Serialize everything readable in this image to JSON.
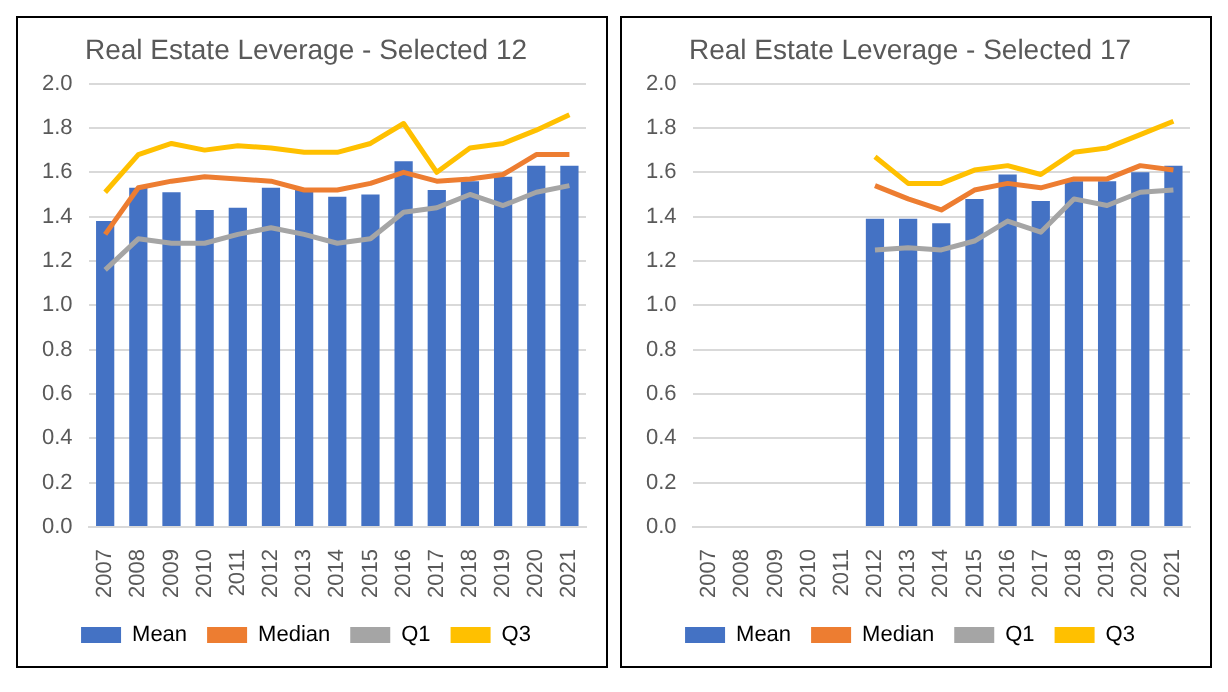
{
  "chart_data": [
    {
      "type": "bar",
      "title": "Real Estate Leverage - Selected 12",
      "categories": [
        "2007",
        "2008",
        "2009",
        "2010",
        "2011",
        "2012",
        "2013",
        "2014",
        "2015",
        "2016",
        "2017",
        "2018",
        "2019",
        "2020",
        "2021"
      ],
      "ylim": [
        0,
        2
      ],
      "yticks": [
        {
          "value": 0,
          "label": "0.0"
        },
        {
          "value": 0.2,
          "label": "0.2"
        },
        {
          "value": 0.4,
          "label": "0.4"
        },
        {
          "value": 0.6,
          "label": "0.6"
        },
        {
          "value": 0.8,
          "label": "0.8"
        },
        {
          "value": 1,
          "label": "1.0"
        },
        {
          "value": 1.2,
          "label": "1.2"
        },
        {
          "value": 1.4,
          "label": "1.4"
        },
        {
          "value": 1.6,
          "label": "1.6"
        },
        {
          "value": 1.8,
          "label": "1.8"
        },
        {
          "value": 2,
          "label": "2.0"
        }
      ],
      "grid": "y",
      "legend": "bottom",
      "series": [
        {
          "name": "Mean",
          "color": "#4472c4",
          "values": [
            1.38,
            1.53,
            1.51,
            1.43,
            1.44,
            1.53,
            1.52,
            1.49,
            1.5,
            1.65,
            1.52,
            1.56,
            1.58,
            1.63,
            1.63
          ]
        },
        {
          "name": "Median",
          "type": "line",
          "color": "#ed7d31",
          "values": [
            1.32,
            1.53,
            1.56,
            1.58,
            1.57,
            1.56,
            1.52,
            1.52,
            1.55,
            1.6,
            1.56,
            1.57,
            1.59,
            1.68,
            1.68
          ]
        },
        {
          "name": "Q1",
          "type": "line",
          "color": "#a5a5a5",
          "values": [
            1.16,
            1.3,
            1.28,
            1.28,
            1.32,
            1.35,
            1.32,
            1.28,
            1.3,
            1.42,
            1.44,
            1.5,
            1.45,
            1.51,
            1.54
          ]
        },
        {
          "name": "Q3",
          "type": "line",
          "color": "#ffc000",
          "values": [
            1.51,
            1.68,
            1.73,
            1.7,
            1.72,
            1.71,
            1.69,
            1.69,
            1.73,
            1.82,
            1.6,
            1.71,
            1.73,
            1.79,
            1.86
          ]
        }
      ]
    },
    {
      "type": "bar",
      "title": "Real Estate Leverage - Selected 17",
      "categories": [
        "2007",
        "2008",
        "2009",
        "2010",
        "2011",
        "2012",
        "2013",
        "2014",
        "2015",
        "2016",
        "2017",
        "2018",
        "2019",
        "2020",
        "2021"
      ],
      "ylim": [
        0,
        2
      ],
      "yticks": [
        {
          "value": 0,
          "label": "0.0"
        },
        {
          "value": 0.2,
          "label": "0.2"
        },
        {
          "value": 0.4,
          "label": "0.4"
        },
        {
          "value": 0.6,
          "label": "0.6"
        },
        {
          "value": 0.8,
          "label": "0.8"
        },
        {
          "value": 1,
          "label": "1.0"
        },
        {
          "value": 1.2,
          "label": "1.2"
        },
        {
          "value": 1.4,
          "label": "1.4"
        },
        {
          "value": 1.6,
          "label": "1.6"
        },
        {
          "value": 1.8,
          "label": "1.8"
        },
        {
          "value": 2,
          "label": "2.0"
        }
      ],
      "grid": "y",
      "legend": "bottom",
      "series": [
        {
          "name": "Mean",
          "color": "#4472c4",
          "values": [
            null,
            null,
            null,
            null,
            null,
            1.39,
            1.39,
            1.37,
            1.48,
            1.59,
            1.47,
            1.56,
            1.56,
            1.6,
            1.63
          ]
        },
        {
          "name": "Median",
          "type": "line",
          "color": "#ed7d31",
          "values": [
            null,
            null,
            null,
            null,
            null,
            1.54,
            1.48,
            1.43,
            1.52,
            1.55,
            1.53,
            1.57,
            1.57,
            1.63,
            1.61
          ]
        },
        {
          "name": "Q1",
          "type": "line",
          "color": "#a5a5a5",
          "values": [
            null,
            null,
            null,
            null,
            null,
            1.25,
            1.26,
            1.25,
            1.29,
            1.38,
            1.33,
            1.48,
            1.45,
            1.51,
            1.52
          ]
        },
        {
          "name": "Q3",
          "type": "line",
          "color": "#ffc000",
          "values": [
            null,
            null,
            null,
            null,
            null,
            1.67,
            1.55,
            1.55,
            1.61,
            1.63,
            1.59,
            1.69,
            1.71,
            1.77,
            1.83
          ]
        }
      ]
    }
  ]
}
